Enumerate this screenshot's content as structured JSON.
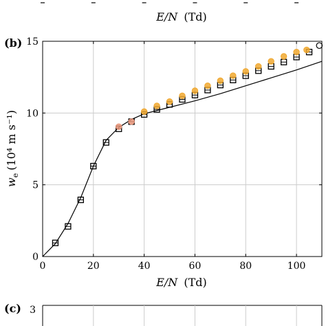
{
  "top_strip": {
    "xlabel_var": "E/N",
    "xlabel_unit": "(Td)"
  },
  "panel_b": {
    "panel_label": "(b)",
    "xlabel_var": "E/N",
    "xlabel_unit": "(Td)",
    "ylabel_var": "w",
    "ylabel_sub": "e",
    "ylabel_unit": "(10⁴ m s⁻¹)"
  },
  "panel_c": {
    "panel_label": "(c)",
    "y_tick_top": "3"
  },
  "colors": {
    "orange": "#f0a830",
    "salmon": "#e8957a",
    "black": "#000000",
    "grid": "#cccccc"
  },
  "chart_data": [
    {
      "type": "scatter",
      "panel": "(b)",
      "xlabel": "E/N (Td)",
      "ylabel": "w_e (10^4 m s^-1)",
      "xlim": [
        0,
        110
      ],
      "ylim": [
        0,
        15
      ],
      "x_ticks": [
        0,
        20,
        40,
        60,
        80,
        100
      ],
      "y_ticks": [
        0,
        5,
        10,
        15
      ],
      "grid": true,
      "series": [
        {
          "marker": "square",
          "color": "#000000",
          "x": [
            5,
            10,
            15,
            20,
            25,
            30,
            35,
            40,
            45,
            50,
            55,
            60,
            65,
            70,
            75,
            80,
            85,
            90,
            95,
            100,
            105
          ],
          "y": [
            0.95,
            2.1,
            3.95,
            6.3,
            7.95,
            8.9,
            9.4,
            9.9,
            10.25,
            10.6,
            10.95,
            11.25,
            11.6,
            11.95,
            12.3,
            12.6,
            12.95,
            13.25,
            13.55,
            13.9,
            14.25
          ]
        },
        {
          "marker": "circle",
          "color": "#f0a830",
          "x": [
            40,
            45,
            50,
            55,
            60,
            65,
            70,
            75,
            80,
            85,
            90,
            95,
            100,
            104
          ],
          "y": [
            10.1,
            10.5,
            10.8,
            11.2,
            11.55,
            11.9,
            12.25,
            12.6,
            12.9,
            13.25,
            13.6,
            13.95,
            14.25,
            14.4
          ]
        },
        {
          "marker": "circle",
          "color": "#e8957a",
          "x": [
            30,
            35
          ],
          "y": [
            9.05,
            9.4
          ]
        },
        {
          "marker": "circle-open",
          "color": "#000000",
          "x": [
            109
          ],
          "y": [
            14.7
          ]
        },
        {
          "type": "line",
          "color": "#000000",
          "x": [
            0,
            5,
            10,
            15,
            20,
            25,
            30,
            35,
            40,
            50,
            60,
            70,
            80,
            90,
            100,
            110
          ],
          "y": [
            0,
            0.9,
            2.3,
            4.1,
            6.3,
            8.1,
            9.0,
            9.55,
            9.95,
            10.4,
            10.85,
            11.35,
            11.9,
            12.45,
            13.0,
            13.6
          ]
        }
      ]
    }
  ]
}
